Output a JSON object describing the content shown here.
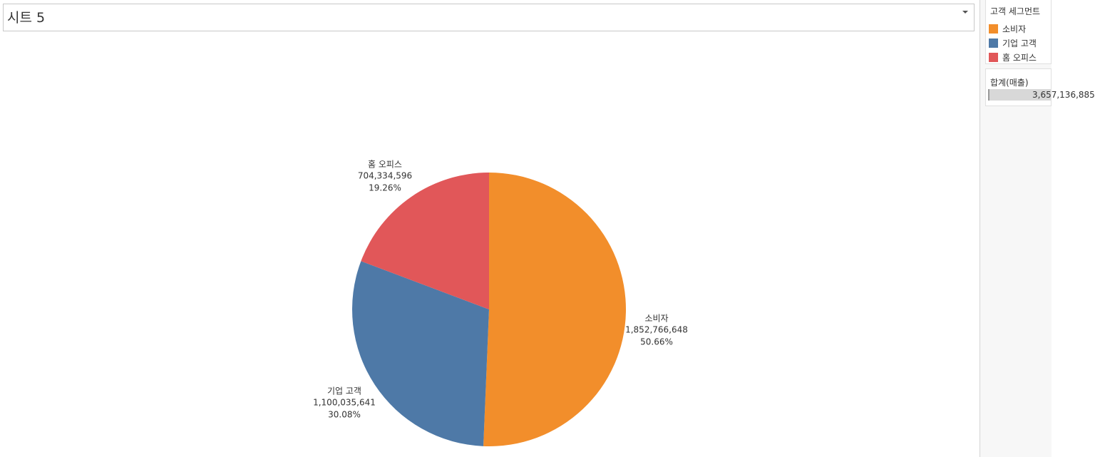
{
  "header": {
    "title": "시트 5"
  },
  "chart_data": {
    "type": "pie",
    "categories": [
      "소비자",
      "기업 고객",
      "홈 오피스"
    ],
    "values": [
      1852766648,
      1100035641,
      704334596
    ],
    "value_labels": [
      "1,852,766,648",
      "1,100,035,641",
      "704,334,596"
    ],
    "shares": [
      50.66,
      30.08,
      19.26
    ],
    "share_labels": [
      "50.66%",
      "30.08%",
      "19.26%"
    ],
    "colors": [
      "#f28e2b",
      "#4e79a7",
      "#e15759"
    ],
    "legend": {
      "title": "고객 세그먼트",
      "position": "right"
    }
  },
  "filter": {
    "title": "합계(매출)",
    "label": "3,657,136,885"
  }
}
